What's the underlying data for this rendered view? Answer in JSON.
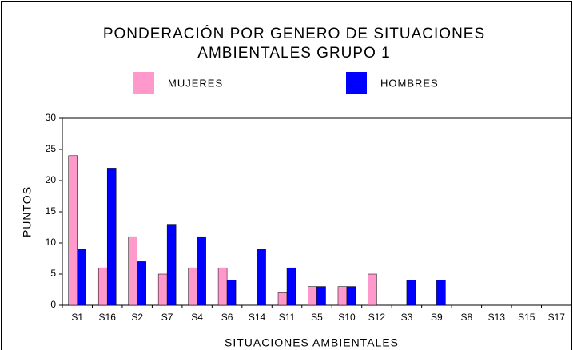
{
  "chart_data": {
    "type": "bar",
    "title": [
      "PONDERACIÓN POR GENERO DE SITUACIONES",
      "AMBIENTALES GRUPO 1"
    ],
    "x_label": "SITUACIONES AMBIENTALES",
    "y_label": "PUNTOS",
    "categories": [
      "S1",
      "S16",
      "S2",
      "S7",
      "S4",
      "S6",
      "S14",
      "S11",
      "S5",
      "S10",
      "S12",
      "S3",
      "S9",
      "S8",
      "S13",
      "S15",
      "S17"
    ],
    "series": [
      {
        "name": "MUJERES",
        "color": "#ff99cc",
        "values": [
          24,
          6,
          11,
          5,
          6,
          6,
          0,
          2,
          3,
          3,
          5,
          0,
          0,
          0,
          0,
          0,
          0
        ]
      },
      {
        "name": "HOMBRES",
        "color": "#0000ff",
        "values": [
          9,
          22,
          7,
          13,
          11,
          4,
          9,
          6,
          3,
          3,
          0,
          4,
          4,
          0,
          0,
          0,
          0
        ]
      }
    ],
    "ylim": [
      0,
      30
    ],
    "yticks": [
      0,
      5,
      10,
      15,
      20,
      25,
      30
    ],
    "grid": false,
    "legend": "top"
  }
}
